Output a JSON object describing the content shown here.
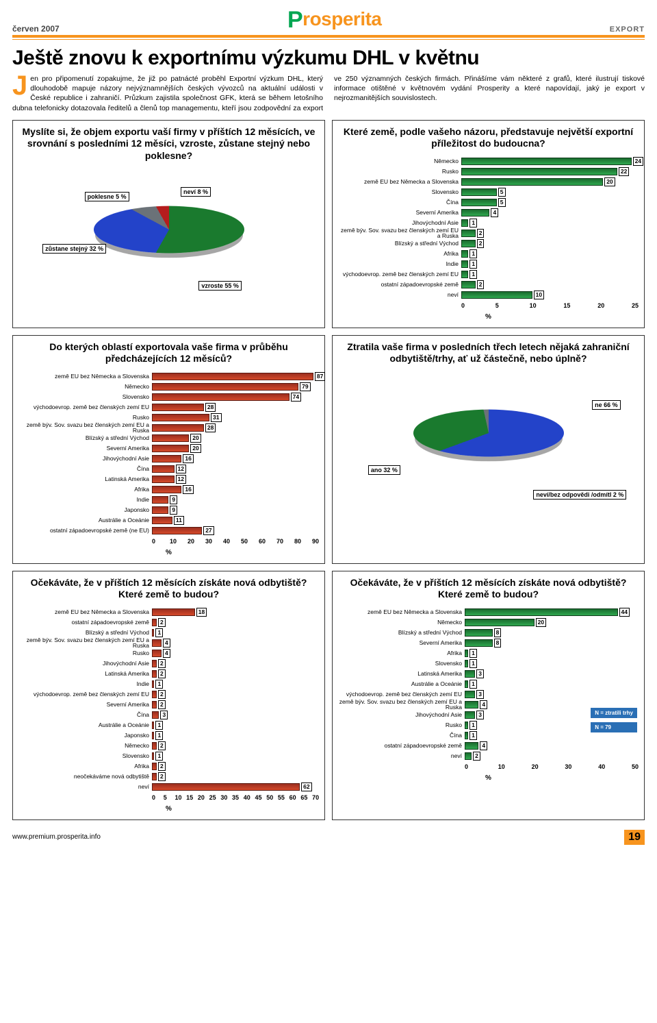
{
  "header": {
    "date": "červen 2007",
    "logo_prefix": "P",
    "logo_rest": "rosperita",
    "section": "EXPORT"
  },
  "article": {
    "title": "Ještě znovu k exportnímu výzkumu DHL v květnu",
    "dropcap": "J",
    "body": "en pro připomenutí zopakujme, že již po patnácté proběhl Exportní výzkum DHL, který dlouhodobě mapuje názory nejvýznamnějších českých vývozců na aktuální události v České republice i zahraničí. Průzkum zajistila společnost GFK, která se během letošního dubna telefonicky dotazovala ředitelů a členů top managementu, kteří jsou zodpovědní za export ve 250 významných českých firmách. Přinášíme vám některé z grafů, které ilustrují tiskové informace otištěné v květnovém vydání Prosperity a které napovídají, jaký je export v nejrozmanitějších souvislostech."
  },
  "panels": {
    "p1": {
      "title": "Myslíte si, že objem exportu vaší firmy v příštích 12 měsících, ve srovnání s posledními 12 měsíci, vzroste, zůstane stejný nebo poklesne?",
      "pie": {
        "slices": [
          {
            "label": "vzroste",
            "value": 55,
            "color": "#1a7a2e"
          },
          {
            "label": "zůstane stejný",
            "value": 32,
            "color": "#2343c9"
          },
          {
            "label": "neví",
            "value": 8,
            "color": "#6b7278"
          },
          {
            "label": "poklesne",
            "value": 5,
            "color": "#b51d1d"
          }
        ],
        "labels": {
          "poklesne": "poklesne\n5 %",
          "nevi": "neví\n8 %",
          "zustane": "zůstane stejný\n32 %",
          "vzroste": "vzroste\n55 %"
        }
      }
    },
    "p2": {
      "title": "Které země, podle vašeho názoru, představuje největší exportní příležitost do budoucna?",
      "max": 25,
      "ticks": [
        0,
        5,
        10,
        15,
        20,
        25
      ],
      "cat_width": 180,
      "bar_color": "green",
      "items": [
        {
          "cat": "Německo",
          "v": 24
        },
        {
          "cat": "Rusko",
          "v": 22
        },
        {
          "cat": "země EU bez Německa a Slovenska",
          "v": 20
        },
        {
          "cat": "Slovensko",
          "v": 5
        },
        {
          "cat": "Čína",
          "v": 5
        },
        {
          "cat": "Severní Amerika",
          "v": 4
        },
        {
          "cat": "Jihovýchodní Asie",
          "v": 1
        },
        {
          "cat": "země býv. Sov. svazu bez členských zemí EU a Ruska",
          "v": 2
        },
        {
          "cat": "Blízský a střední Východ",
          "v": 2
        },
        {
          "cat": "Afrika",
          "v": 1
        },
        {
          "cat": "Indie",
          "v": 1
        },
        {
          "cat": "východoevrop. země bez členských zemí EU",
          "v": 1
        },
        {
          "cat": "ostatní západoevropské země",
          "v": 2
        },
        {
          "cat": "neví",
          "v": 10
        }
      ]
    },
    "p3": {
      "title": "Do kterých oblastí exportovala vaše firma v průběhu předcházejících 12 měsíců?",
      "max": 90,
      "ticks": [
        0,
        10,
        20,
        30,
        40,
        50,
        60,
        70,
        80,
        90
      ],
      "cat_width": 195,
      "bar_color": "red",
      "items": [
        {
          "cat": "země EU bez Německa a Slovenska",
          "v": 87
        },
        {
          "cat": "Německo",
          "v": 79
        },
        {
          "cat": "Slovensko",
          "v": 74
        },
        {
          "cat": "východoevrop. země bez členských zemí EU",
          "v": 28
        },
        {
          "cat": "Rusko",
          "v": 31
        },
        {
          "cat": "země býv. Sov. svazu bez členských zemí EU a Ruska",
          "v": 28
        },
        {
          "cat": "Blízský a střední Východ",
          "v": 20
        },
        {
          "cat": "Severní Amerika",
          "v": 20
        },
        {
          "cat": "Jihovýchodní Asie",
          "v": 16
        },
        {
          "cat": "Čína",
          "v": 12
        },
        {
          "cat": "Latinská Amerika",
          "v": 12
        },
        {
          "cat": "Afrika",
          "v": 16
        },
        {
          "cat": "Indie",
          "v": 9
        },
        {
          "cat": "Japonsko",
          "v": 9
        },
        {
          "cat": "Austrálie a Oceánie",
          "v": 11
        },
        {
          "cat": "ostatní západoevropské země (ne EU)",
          "v": 27
        }
      ]
    },
    "p4": {
      "title": "Ztratila vaše firma v posledních třech letech nějaká zahraniční odbytiště/trhy, ať už částečně, nebo úplně?",
      "pie": {
        "slices": [
          {
            "label": "ne",
            "value": 66,
            "color": "#2343c9"
          },
          {
            "label": "ano",
            "value": 32,
            "color": "#1a7a2e"
          },
          {
            "label": "neví/bez odpovědi /odmítl",
            "value": 2,
            "color": "#6b7278"
          }
        ],
        "labels": {
          "ne": "ne\n66 %",
          "ano": "ano\n32 %",
          "nevi": "neví/bez odpovědi\n/odmítl\n2 %"
        }
      }
    },
    "p5": {
      "title": "Očekáváte, že v příštích 12 měsících získáte nová odbytiště? Které země to budou?",
      "max": 70,
      "ticks": [
        0,
        5,
        10,
        15,
        20,
        25,
        30,
        35,
        40,
        45,
        50,
        55,
        60,
        65,
        70
      ],
      "cat_width": 195,
      "bar_color": "red",
      "items": [
        {
          "cat": "země EU bez Německa a Slovenska",
          "v": 18
        },
        {
          "cat": "ostatní západoevropské země",
          "v": 2
        },
        {
          "cat": "Blízský a střední Východ",
          "v": 1
        },
        {
          "cat": "země býv. Sov. svazu bez členských zemí EU a Ruska",
          "v": 4
        },
        {
          "cat": "Rusko",
          "v": 4
        },
        {
          "cat": "Jihovýchodní Asie",
          "v": 2
        },
        {
          "cat": "Latinská Amerika",
          "v": 2
        },
        {
          "cat": "Indie",
          "v": 1
        },
        {
          "cat": "východoevrop. země bez členských zemí EU",
          "v": 2
        },
        {
          "cat": "Severní Amerika",
          "v": 2
        },
        {
          "cat": "Čína",
          "v": 3
        },
        {
          "cat": "Austrálie a Oceánie",
          "v": 1
        },
        {
          "cat": "Japonsko",
          "v": 1
        },
        {
          "cat": "Německo",
          "v": 2
        },
        {
          "cat": "Slovensko",
          "v": 1
        },
        {
          "cat": "Afrika",
          "v": 2
        },
        {
          "cat": "neočekáváme nová odbytiště",
          "v": 2
        },
        {
          "cat": "neví",
          "v": 62
        }
      ]
    },
    "p6": {
      "title": "Očekáváte, že v příštích 12 měsících získáte nová odbytiště? Které země to budou?",
      "max": 50,
      "ticks": [
        0,
        10,
        20,
        30,
        40,
        50
      ],
      "cat_width": 185,
      "bar_color": "green",
      "badges": [
        "N = ztratili trhy",
        "N = 79"
      ],
      "items": [
        {
          "cat": "země EU bez Německa a Slovenska",
          "v": 44
        },
        {
          "cat": "Německo",
          "v": 20
        },
        {
          "cat": "Blízský a střední Východ",
          "v": 8
        },
        {
          "cat": "Severní Amerika",
          "v": 8
        },
        {
          "cat": "Afrika",
          "v": 1
        },
        {
          "cat": "Slovensko",
          "v": 1
        },
        {
          "cat": "Latinská Amerika",
          "v": 3
        },
        {
          "cat": "Austrálie a Oceánie",
          "v": 1
        },
        {
          "cat": "východoevrop. země bez členských zemí EU",
          "v": 3
        },
        {
          "cat": "země býv. Sov. svazu bez členských zemí EU a Ruska",
          "v": 4
        },
        {
          "cat": "Jihovýchodní Asie",
          "v": 3
        },
        {
          "cat": "Rusko",
          "v": 1
        },
        {
          "cat": "Čína",
          "v": 1
        },
        {
          "cat": "ostatní západoevropské země",
          "v": 4
        },
        {
          "cat": "neví",
          "v": 2
        }
      ]
    }
  },
  "footer": {
    "url": "www.premium.prosperita.info",
    "page": "19"
  },
  "labels": {
    "pct": "%"
  }
}
